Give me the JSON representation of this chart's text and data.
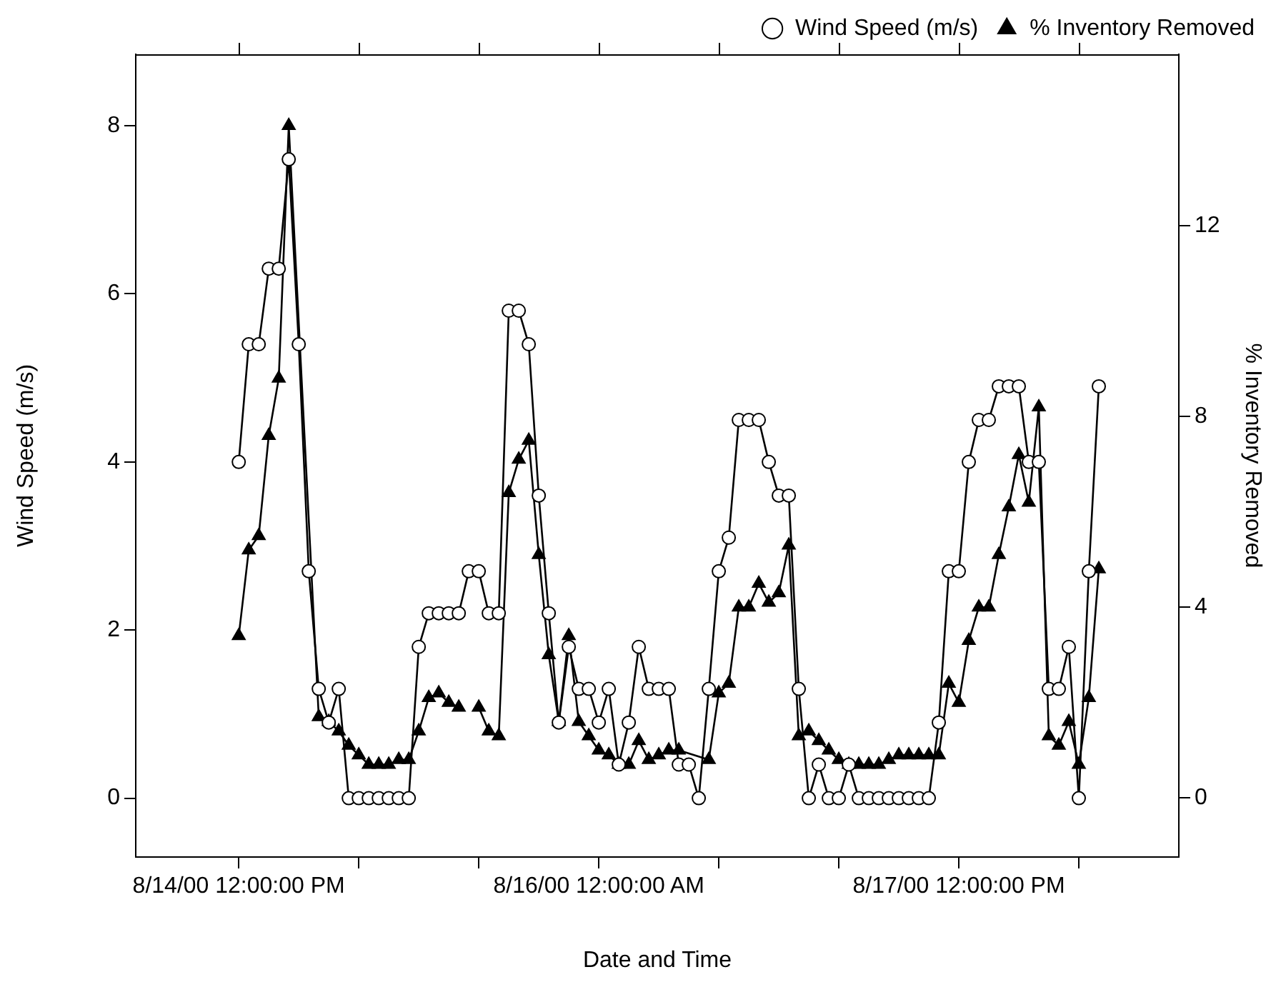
{
  "chart_data": {
    "type": "line",
    "xlabel": "Date and Time",
    "ylabel": "Wind Speed (m/s)",
    "y2label": "% Inventory Removed",
    "xlim": [
      "2000-08-14T01:42",
      "2000-08-18T10:00"
    ],
    "xticks": [
      {
        "value": "2000-08-14T12:00",
        "label": "8/14/00 12:00:00 PM"
      },
      {
        "value": "2000-08-15T00:00",
        "label": null
      },
      {
        "value": "2000-08-15T12:00",
        "label": null
      },
      {
        "value": "2000-08-16T00:00",
        "label": "8/16/00 12:00:00 AM"
      },
      {
        "value": "2000-08-16T12:00",
        "label": null
      },
      {
        "value": "2000-08-17T00:00",
        "label": null
      },
      {
        "value": "2000-08-17T12:00",
        "label": "8/17/00 12:00:00 PM"
      },
      {
        "value": "2000-08-18T00:00",
        "label": null
      }
    ],
    "ylim": [
      -0.7,
      8.85
    ],
    "yticks": [
      0,
      2,
      4,
      6,
      8
    ],
    "y2lim": [
      -1.24,
      15.6
    ],
    "y2ticks": [
      0,
      4,
      8,
      12
    ],
    "grid": false,
    "legend": "top right",
    "line_style": "solid",
    "series": [
      {
        "name": "Wind Speed (m/s)",
        "color": "#000000",
        "marker": "circle",
        "x": [
          "2000-08-14T12:00",
          "2000-08-14T13:00",
          "2000-08-14T14:00",
          "2000-08-14T15:00",
          "2000-08-14T16:00",
          "2000-08-14T17:00",
          "2000-08-14T18:00",
          "2000-08-14T19:00",
          "2000-08-14T20:00",
          "2000-08-14T21:00",
          "2000-08-14T22:00",
          "2000-08-14T23:00",
          "2000-08-15T00:00",
          "2000-08-15T01:00",
          "2000-08-15T02:00",
          "2000-08-15T03:00",
          "2000-08-15T04:00",
          "2000-08-15T05:00",
          "2000-08-15T06:00",
          "2000-08-15T07:00",
          "2000-08-15T08:00",
          "2000-08-15T09:00",
          "2000-08-15T10:00",
          "2000-08-15T11:00",
          "2000-08-15T12:00",
          "2000-08-15T13:00",
          "2000-08-15T14:00",
          "2000-08-15T15:00",
          "2000-08-15T16:00",
          "2000-08-15T17:00",
          "2000-08-15T18:00",
          "2000-08-15T19:00",
          "2000-08-15T20:00",
          "2000-08-15T21:00",
          "2000-08-15T22:00",
          "2000-08-15T23:00",
          "2000-08-16T00:00",
          "2000-08-16T01:00",
          "2000-08-16T02:00",
          "2000-08-16T03:00",
          "2000-08-16T04:00",
          "2000-08-16T05:00",
          "2000-08-16T06:00",
          "2000-08-16T07:00",
          "2000-08-16T08:00",
          "2000-08-16T09:00",
          "2000-08-16T10:00",
          "2000-08-16T11:00",
          "2000-08-16T12:00",
          "2000-08-16T13:00",
          "2000-08-16T14:00",
          "2000-08-16T15:00",
          "2000-08-16T16:00",
          "2000-08-16T17:00",
          "2000-08-16T18:00",
          "2000-08-16T19:00",
          "2000-08-16T20:00",
          "2000-08-16T21:00",
          "2000-08-16T22:00",
          "2000-08-16T23:00",
          "2000-08-17T00:00",
          "2000-08-17T01:00",
          "2000-08-17T02:00",
          "2000-08-17T03:00",
          "2000-08-17T04:00",
          "2000-08-17T05:00",
          "2000-08-17T06:00",
          "2000-08-17T07:00",
          "2000-08-17T08:00",
          "2000-08-17T09:00",
          "2000-08-17T10:00",
          "2000-08-17T11:00",
          "2000-08-17T12:00",
          "2000-08-17T13:00",
          "2000-08-17T14:00",
          "2000-08-17T15:00",
          "2000-08-17T16:00",
          "2000-08-17T17:00",
          "2000-08-17T18:00",
          "2000-08-17T19:00",
          "2000-08-17T20:00",
          "2000-08-17T21:00",
          "2000-08-17T22:00",
          "2000-08-17T23:00",
          "2000-08-18T00:00",
          "2000-08-18T01:00",
          "2000-08-18T02:00"
        ],
        "values": [
          4.0,
          5.4,
          5.4,
          6.3,
          6.3,
          7.6,
          5.4,
          2.7,
          1.3,
          0.9,
          1.3,
          0,
          0,
          0,
          0,
          0,
          0,
          0,
          1.8,
          2.2,
          2.2,
          2.2,
          2.2,
          2.7,
          2.7,
          2.2,
          2.2,
          5.8,
          5.8,
          5.4,
          3.6,
          2.2,
          0.9,
          1.8,
          1.3,
          1.3,
          0.9,
          1.3,
          0.4,
          0.9,
          1.8,
          1.3,
          1.3,
          1.3,
          0.4,
          0.4,
          0,
          1.3,
          2.7,
          3.1,
          4.5,
          4.5,
          4.5,
          4.0,
          3.6,
          3.6,
          1.3,
          0,
          0.4,
          0,
          0,
          0.4,
          0,
          0,
          0,
          0,
          0,
          0,
          0,
          0,
          0.9,
          2.7,
          2.7,
          4.0,
          4.5,
          4.5,
          4.9,
          4.9,
          4.9,
          4.0,
          4.0,
          1.3,
          1.3,
          1.8,
          0,
          2.7,
          4.9
        ]
      },
      {
        "name": "% Inventory Removed",
        "color": "#000000",
        "marker": "triangle",
        "axis": "y2",
        "x": [
          "2000-08-14T12:00",
          "2000-08-14T13:00",
          "2000-08-14T14:00",
          "2000-08-14T15:00",
          "2000-08-14T16:00",
          "2000-08-14T17:00",
          "2000-08-14T20:00",
          "2000-08-14T21:00",
          "2000-08-14T22:00",
          "2000-08-14T23:00",
          "2000-08-15T00:00",
          "2000-08-15T01:00",
          "2000-08-15T02:00",
          "2000-08-15T03:00",
          "2000-08-15T04:00",
          "2000-08-15T05:00",
          "2000-08-15T06:00",
          "2000-08-15T07:00",
          "2000-08-15T08:00",
          "2000-08-15T09:00",
          "2000-08-15T10:00",
          "2000-08-15T11:00",
          "2000-08-15T12:00",
          "2000-08-15T13:00",
          "2000-08-15T14:00",
          "2000-08-15T15:00",
          "2000-08-15T16:00",
          "2000-08-15T17:00",
          "2000-08-15T18:00",
          "2000-08-15T19:00",
          "2000-08-15T20:00",
          "2000-08-15T21:00",
          "2000-08-15T22:00",
          "2000-08-15T23:00",
          "2000-08-16T00:00",
          "2000-08-16T01:00",
          "2000-08-16T02:00",
          "2000-08-16T03:00",
          "2000-08-16T04:00",
          "2000-08-16T05:00",
          "2000-08-16T06:00",
          "2000-08-16T07:00",
          "2000-08-16T08:00",
          "2000-08-16T11:00",
          "2000-08-16T12:00",
          "2000-08-16T13:00",
          "2000-08-16T14:00",
          "2000-08-16T15:00",
          "2000-08-16T16:00",
          "2000-08-16T17:00",
          "2000-08-16T18:00",
          "2000-08-16T19:00",
          "2000-08-16T20:00",
          "2000-08-16T21:00",
          "2000-08-16T22:00",
          "2000-08-16T23:00",
          "2000-08-17T00:00",
          "2000-08-17T01:00",
          "2000-08-17T02:00",
          "2000-08-17T03:00",
          "2000-08-17T04:00",
          "2000-08-17T05:00",
          "2000-08-17T06:00",
          "2000-08-17T07:00",
          "2000-08-17T08:00",
          "2000-08-17T09:00",
          "2000-08-17T10:00",
          "2000-08-17T11:00",
          "2000-08-17T12:00",
          "2000-08-17T13:00",
          "2000-08-17T14:00",
          "2000-08-17T15:00",
          "2000-08-17T16:00",
          "2000-08-17T17:00",
          "2000-08-17T18:00",
          "2000-08-17T19:00",
          "2000-08-17T20:00",
          "2000-08-17T21:00",
          "2000-08-17T22:00",
          "2000-08-17T23:00",
          "2000-08-18T00:00",
          "2000-08-18T01:00",
          "2000-08-18T02:00"
        ],
        "values": [
          3.4,
          5.2,
          5.5,
          7.6,
          8.8,
          14.1,
          1.7,
          1.6,
          1.4,
          1.1,
          0.9,
          0.7,
          0.7,
          0.7,
          0.8,
          0.8,
          1.4,
          2.1,
          2.2,
          2.0,
          1.9,
          null,
          1.9,
          1.4,
          1.3,
          6.4,
          7.1,
          7.5,
          5.1,
          3.0,
          1.6,
          3.4,
          1.6,
          1.3,
          1.0,
          0.9,
          0.7,
          0.7,
          1.2,
          0.8,
          0.9,
          1.0,
          1.0,
          0.8,
          2.2,
          2.4,
          4.0,
          4.0,
          4.5,
          4.1,
          4.3,
          5.3,
          1.3,
          1.4,
          1.2,
          1.0,
          0.8,
          0.7,
          0.7,
          0.7,
          0.7,
          0.8,
          0.9,
          0.9,
          0.9,
          0.9,
          0.9,
          2.4,
          2.0,
          3.3,
          4.0,
          4.0,
          5.1,
          6.1,
          7.2,
          6.2,
          8.2,
          1.3,
          1.1,
          1.6,
          0.7,
          2.1,
          4.8
        ]
      }
    ]
  }
}
